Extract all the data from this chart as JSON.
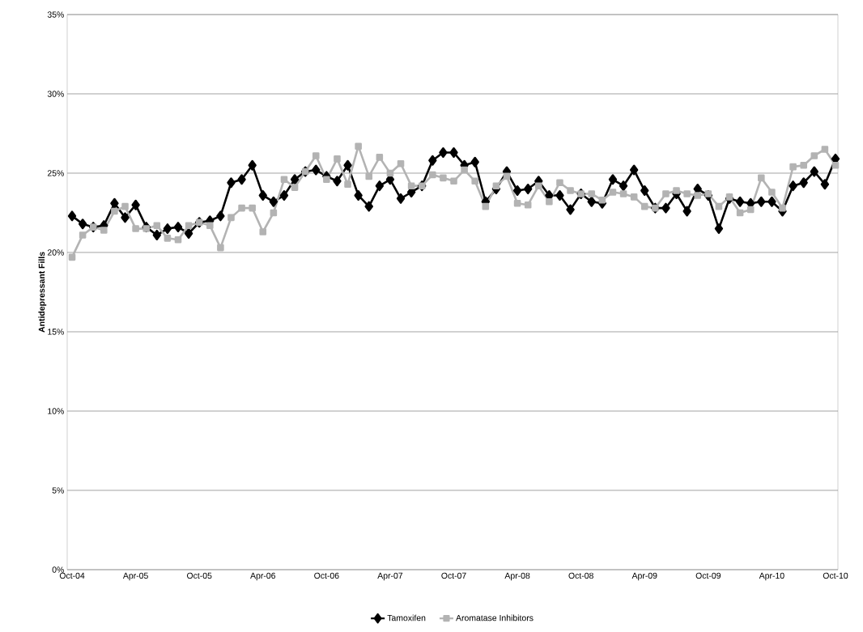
{
  "chart_data": {
    "type": "line",
    "ylabel": "Antidepressant Fills",
    "categories": [
      "Oct-04",
      null,
      null,
      null,
      null,
      null,
      "Apr-05",
      null,
      null,
      null,
      null,
      null,
      "Oct-05",
      null,
      null,
      null,
      null,
      null,
      "Apr-06",
      null,
      null,
      null,
      null,
      null,
      "Oct-06",
      null,
      null,
      null,
      null,
      null,
      "Apr-07",
      null,
      null,
      null,
      null,
      null,
      "Oct-07",
      null,
      null,
      null,
      null,
      null,
      "Apr-08",
      null,
      null,
      null,
      null,
      null,
      "Oct-08",
      null,
      null,
      null,
      null,
      null,
      "Apr-09",
      null,
      null,
      null,
      null,
      null,
      "Oct-09",
      null,
      null,
      null,
      null,
      null,
      "Apr-10",
      null,
      null,
      null,
      null,
      null,
      "Oct-10"
    ],
    "series": [
      {
        "name": "Tamoxifen",
        "color": "#000000",
        "marker": "diamond",
        "values": [
          22.3,
          21.8,
          21.6,
          21.7,
          23.1,
          22.2,
          23.0,
          21.6,
          21.1,
          21.5,
          21.6,
          21.2,
          21.9,
          22.0,
          22.3,
          24.4,
          24.6,
          25.5,
          23.6,
          23.2,
          23.6,
          24.6,
          25.1,
          25.2,
          24.8,
          24.5,
          25.5,
          23.6,
          22.9,
          24.2,
          24.6,
          23.4,
          23.8,
          24.2,
          25.8,
          26.3,
          26.3,
          25.5,
          25.7,
          23.2,
          24.0,
          25.1,
          23.9,
          24.0,
          24.5,
          23.6,
          23.6,
          22.7,
          23.7,
          23.2,
          23.1,
          24.6,
          24.2,
          25.2,
          23.9,
          22.8,
          22.8,
          23.7,
          22.6,
          24.0,
          23.6,
          21.5,
          23.4,
          23.2,
          23.1,
          23.2,
          23.2,
          22.6,
          24.2,
          24.4,
          25.1,
          24.3,
          25.9
        ]
      },
      {
        "name": "Aromatase Inhibitors",
        "color": "#b3b3b3",
        "marker": "square",
        "values": [
          19.7,
          21.1,
          21.6,
          21.4,
          22.6,
          22.9,
          21.5,
          21.5,
          21.7,
          20.9,
          20.8,
          21.7,
          21.9,
          21.7,
          20.3,
          22.2,
          22.8,
          22.8,
          21.3,
          22.5,
          24.6,
          24.1,
          25.1,
          26.1,
          24.6,
          25.9,
          24.3,
          26.7,
          24.8,
          26.0,
          25.0,
          25.6,
          24.2,
          24.2,
          24.9,
          24.7,
          24.5,
          25.2,
          24.5,
          22.9,
          24.2,
          24.8,
          23.1,
          23.0,
          24.2,
          23.2,
          24.4,
          23.9,
          23.7,
          23.7,
          23.3,
          23.8,
          23.7,
          23.5,
          22.9,
          22.8,
          23.7,
          23.9,
          23.7,
          23.6,
          23.7,
          22.9,
          23.5,
          22.5,
          22.7,
          24.7,
          23.8,
          22.8,
          25.4,
          25.5,
          26.1,
          26.5,
          25.5
        ]
      }
    ],
    "ylim": [
      0,
      35
    ],
    "yticks": [
      {
        "value": 0,
        "label": "0%"
      },
      {
        "value": 5,
        "label": "5%"
      },
      {
        "value": 10,
        "label": "10%"
      },
      {
        "value": 15,
        "label": "15%"
      },
      {
        "value": 20,
        "label": "20%"
      },
      {
        "value": 25,
        "label": "25%"
      },
      {
        "value": 30,
        "label": "30%"
      },
      {
        "value": 35,
        "label": "35%"
      }
    ],
    "grid": "y",
    "legend": "bottom"
  }
}
